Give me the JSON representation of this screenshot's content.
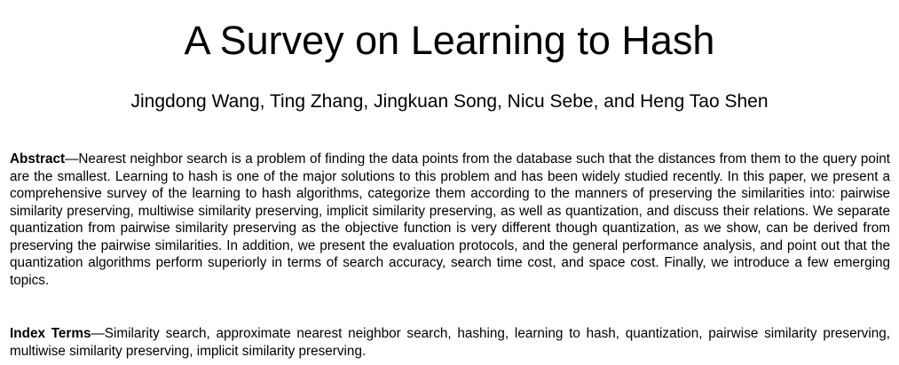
{
  "paper": {
    "title": "A Survey on Learning to Hash",
    "authors": "Jingdong Wang, Ting Zhang, Jingkuan Song, Nicu Sebe, and Heng Tao Shen",
    "abstract": {
      "label": "Abstract",
      "separator": "—",
      "text": "Nearest neighbor search is a problem of finding the data points from the database such that the distances from them to the query point are the smallest. Learning to hash is one of the major solutions to this problem and has been widely studied recently. In this paper, we present a comprehensive survey of the learning to hash algorithms, categorize them according to the manners of preserving the similarities into: pairwise similarity preserving, multiwise similarity preserving, implicit similarity preserving, as well as quantization, and discuss their relations. We separate quantization from pairwise similarity preserving as the objective function is very different though quantization, as we show, can be derived from preserving the pairwise similarities. In addition, we present the evaluation protocols, and the general performance analysis, and point out that the quantization algorithms perform superiorly in terms of search accuracy, search time cost, and space cost. Finally, we introduce a few emerging topics."
    },
    "index_terms": {
      "label": "Index Terms",
      "separator": "—",
      "text": "Similarity search, approximate nearest neighbor search, hashing, learning to hash, quantization, pairwise similarity preserving, multiwise similarity preserving, implicit similarity preserving."
    }
  }
}
